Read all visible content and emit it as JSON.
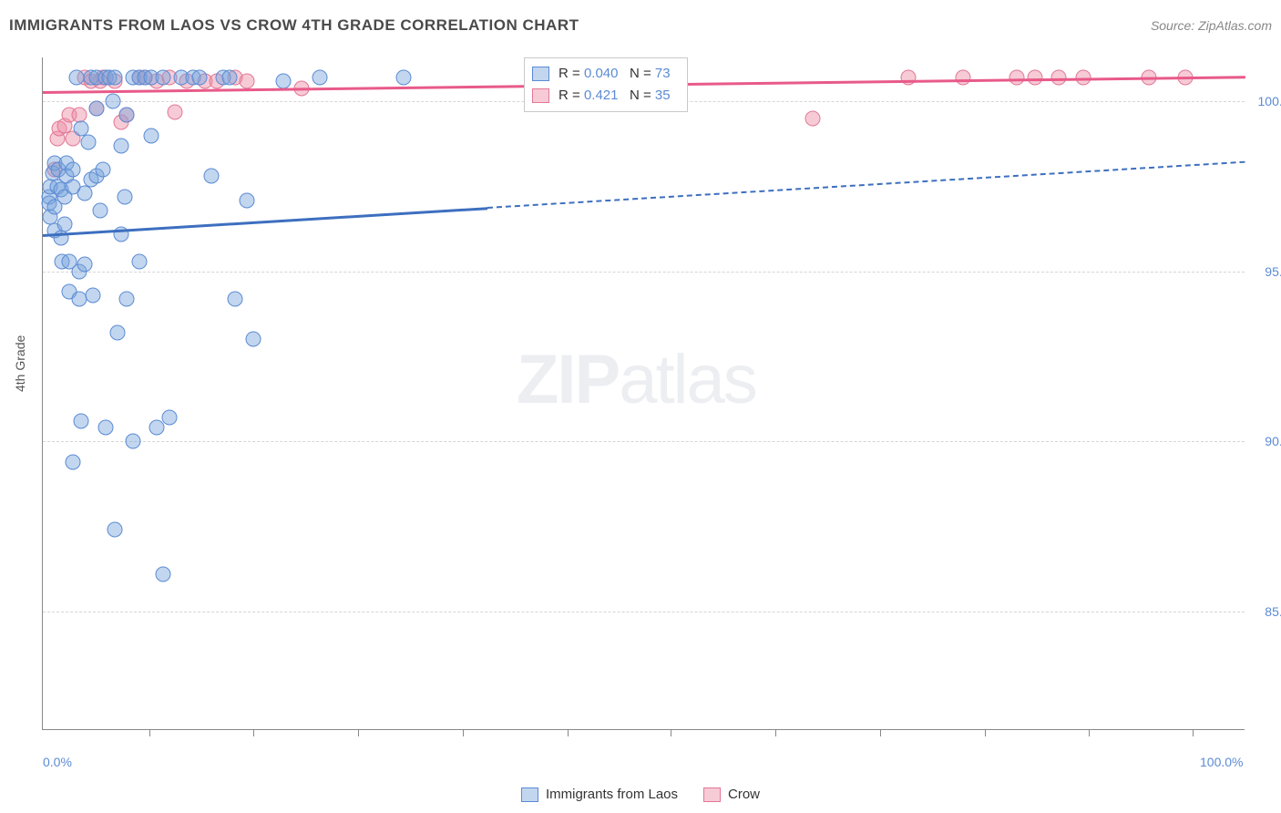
{
  "chart": {
    "type": "scatter",
    "title": "IMMIGRANTS FROM LAOS VS CROW 4TH GRADE CORRELATION CHART",
    "source": "Source: ZipAtlas.com",
    "y_axis_title": "4th Grade",
    "watermark_a": "ZIP",
    "watermark_b": "atlas",
    "background_color": "#ffffff",
    "grid_color": "#d5d5d5",
    "axis_color": "#888888",
    "label_color": "#5b8bd4",
    "x_range": [
      0,
      100
    ],
    "y_range": [
      81.5,
      101.3
    ],
    "y_ticks": [
      {
        "value": 85.0,
        "label": "85.0%"
      },
      {
        "value": 90.0,
        "label": "90.0%"
      },
      {
        "value": 95.0,
        "label": "95.0%"
      },
      {
        "value": 100.0,
        "label": "100.0%"
      }
    ],
    "x_labels": [
      {
        "value": 0,
        "label": "0.0%"
      },
      {
        "value": 100,
        "label": "100.0%"
      }
    ],
    "x_tick_positions": [
      8.9,
      17.5,
      26.2,
      34.9,
      43.6,
      52.2,
      60.9,
      69.6,
      78.3,
      87.0,
      95.6
    ],
    "series": [
      {
        "key": "laos",
        "name": "Immigrants from Laos",
        "fill_color": "rgba(120,165,220,0.45)",
        "stroke_color": "#5b8bd4",
        "line_color": "#3d6fbf",
        "r_value": "0.040",
        "n_value": "73",
        "trend": {
          "x0": 0,
          "y0": 96.1,
          "x1_solid": 37,
          "y1_solid": 96.9,
          "x1_dash": 100,
          "y1_dash": 98.25
        },
        "points": [
          [
            0.5,
            97.2
          ],
          [
            0.5,
            97.0
          ],
          [
            0.6,
            96.6
          ],
          [
            0.6,
            97.5
          ],
          [
            0.8,
            97.9
          ],
          [
            1.0,
            98.2
          ],
          [
            1.0,
            96.9
          ],
          [
            1.0,
            96.2
          ],
          [
            1.2,
            97.5
          ],
          [
            1.3,
            98.0
          ],
          [
            1.5,
            97.4
          ],
          [
            1.5,
            96.0
          ],
          [
            1.6,
            95.3
          ],
          [
            1.8,
            97.2
          ],
          [
            1.8,
            96.4
          ],
          [
            2.0,
            98.2
          ],
          [
            2.0,
            97.8
          ],
          [
            2.2,
            94.4
          ],
          [
            2.2,
            95.3
          ],
          [
            2.5,
            98.0
          ],
          [
            2.5,
            97.5
          ],
          [
            2.8,
            100.7
          ],
          [
            3.0,
            94.2
          ],
          [
            3.0,
            95.0
          ],
          [
            3.2,
            90.6
          ],
          [
            3.2,
            99.2
          ],
          [
            3.5,
            97.3
          ],
          [
            3.5,
            95.2
          ],
          [
            3.8,
            98.8
          ],
          [
            4.0,
            100.7
          ],
          [
            4.0,
            97.7
          ],
          [
            4.2,
            94.3
          ],
          [
            4.5,
            100.7
          ],
          [
            4.5,
            99.8
          ],
          [
            4.5,
            97.8
          ],
          [
            4.8,
            96.8
          ],
          [
            5.0,
            98.0
          ],
          [
            5.2,
            100.7
          ],
          [
            5.2,
            90.4
          ],
          [
            5.5,
            100.7
          ],
          [
            5.8,
            100.0
          ],
          [
            6.0,
            100.7
          ],
          [
            6.0,
            87.4
          ],
          [
            6.2,
            93.2
          ],
          [
            6.5,
            96.1
          ],
          [
            6.5,
            98.7
          ],
          [
            6.8,
            97.2
          ],
          [
            7.0,
            99.6
          ],
          [
            7.0,
            94.2
          ],
          [
            7.5,
            100.7
          ],
          [
            7.5,
            90.0
          ],
          [
            8.0,
            100.7
          ],
          [
            8.0,
            95.3
          ],
          [
            8.5,
            100.7
          ],
          [
            9.0,
            100.7
          ],
          [
            9.0,
            99.0
          ],
          [
            9.5,
            90.4
          ],
          [
            10.0,
            100.7
          ],
          [
            10.0,
            86.1
          ],
          [
            10.5,
            90.7
          ],
          [
            11.5,
            100.7
          ],
          [
            12.5,
            100.7
          ],
          [
            13.0,
            100.7
          ],
          [
            14.0,
            97.8
          ],
          [
            15.0,
            100.7
          ],
          [
            15.5,
            100.7
          ],
          [
            16.0,
            94.2
          ],
          [
            17.0,
            97.1
          ],
          [
            17.5,
            93.0
          ],
          [
            20.0,
            100.6
          ],
          [
            23.0,
            100.7
          ],
          [
            30.0,
            100.7
          ],
          [
            2.5,
            89.4
          ]
        ]
      },
      {
        "key": "crow",
        "name": "Crow",
        "fill_color": "rgba(236,140,165,0.45)",
        "stroke_color": "#e37795",
        "line_color": "#e85a89",
        "r_value": "0.421",
        "n_value": "35",
        "trend": {
          "x0": 0,
          "y0": 100.3,
          "x1_solid": 100,
          "y1_solid": 100.75,
          "x1_dash": 100,
          "y1_dash": 100.75
        },
        "points": [
          [
            1.0,
            98.0
          ],
          [
            1.2,
            98.9
          ],
          [
            1.4,
            99.2
          ],
          [
            1.8,
            99.3
          ],
          [
            2.2,
            99.6
          ],
          [
            2.5,
            98.9
          ],
          [
            3.0,
            99.6
          ],
          [
            3.5,
            100.7
          ],
          [
            4.0,
            100.6
          ],
          [
            4.5,
            99.8
          ],
          [
            5.0,
            100.7
          ],
          [
            6.0,
            100.6
          ],
          [
            6.5,
            99.4
          ],
          [
            7.0,
            99.6
          ],
          [
            8.0,
            100.7
          ],
          [
            8.5,
            100.7
          ],
          [
            9.5,
            100.6
          ],
          [
            10.5,
            100.7
          ],
          [
            11.0,
            99.7
          ],
          [
            12.0,
            100.6
          ],
          [
            13.5,
            100.6
          ],
          [
            14.5,
            100.6
          ],
          [
            16.0,
            100.7
          ],
          [
            17.0,
            100.6
          ],
          [
            21.5,
            100.4
          ],
          [
            64.0,
            99.5
          ],
          [
            72.0,
            100.7
          ],
          [
            76.5,
            100.7
          ],
          [
            81.0,
            100.7
          ],
          [
            82.5,
            100.7
          ],
          [
            84.5,
            100.7
          ],
          [
            86.5,
            100.7
          ],
          [
            92.0,
            100.7
          ],
          [
            95.0,
            100.7
          ],
          [
            4.8,
            100.6
          ]
        ]
      }
    ],
    "legend_bottom": [
      {
        "series": "laos"
      },
      {
        "series": "crow"
      }
    ]
  },
  "legend_top_labels": {
    "r": "R =",
    "n": "N ="
  }
}
